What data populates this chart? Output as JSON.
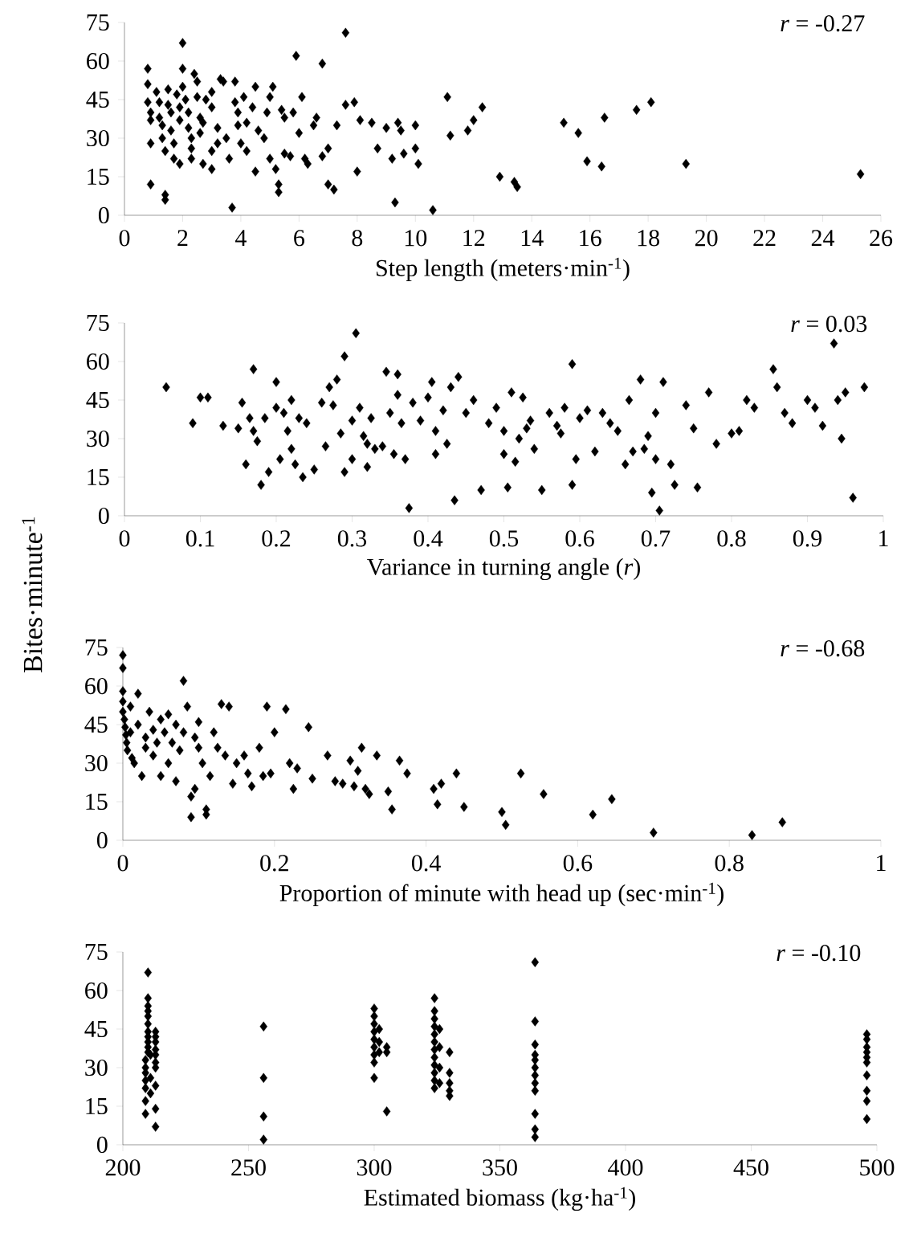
{
  "chart_data": [
    {
      "type": "scatter",
      "color": "#000000",
      "marker": "diamond",
      "xlabel": "Step length (meters·min$^{-1}$)",
      "annotations": [
        "*r* = -0.27"
      ],
      "xlim": [
        0,
        26
      ],
      "xticks": [
        0,
        2,
        4,
        6,
        8,
        10,
        12,
        14,
        16,
        18,
        20,
        22,
        24,
        26
      ],
      "ylim": [
        0,
        75
      ],
      "yticks": [
        0,
        15,
        30,
        45,
        60,
        75
      ],
      "x": [
        0.8,
        0.8,
        0.8,
        0.9,
        0.9,
        0.9,
        0.9,
        1.1,
        1.2,
        1.2,
        1.3,
        1.3,
        1.4,
        1.4,
        1.4,
        1.5,
        1.5,
        1.6,
        1.6,
        1.7,
        1.7,
        1.8,
        1.9,
        1.9,
        1.9,
        2.0,
        2.0,
        2.0,
        2.1,
        2.2,
        2.2,
        2.3,
        2.3,
        2.3,
        2.4,
        2.5,
        2.5,
        2.6,
        2.6,
        2.7,
        2.7,
        2.8,
        3.0,
        3.0,
        3.0,
        3.0,
        3.2,
        3.2,
        3.3,
        3.4,
        3.5,
        3.6,
        3.7,
        3.8,
        3.8,
        3.9,
        3.9,
        4.0,
        4.1,
        4.2,
        4.2,
        4.4,
        4.5,
        4.5,
        4.6,
        4.8,
        4.9,
        5.0,
        5.0,
        5.1,
        5.2,
        5.3,
        5.3,
        5.4,
        5.5,
        5.5,
        5.7,
        5.8,
        5.9,
        6.0,
        6.1,
        6.2,
        6.3,
        6.5,
        6.6,
        6.8,
        6.8,
        7.0,
        7.0,
        7.2,
        7.3,
        7.6,
        7.6,
        7.9,
        8.0,
        8.1,
        8.5,
        8.7,
        9.0,
        9.2,
        9.3,
        9.4,
        9.5,
        9.6,
        10.0,
        10.0,
        10.1,
        10.6,
        11.1,
        11.2,
        11.8,
        12.0,
        12.3,
        12.9,
        13.4,
        13.5,
        15.1,
        15.6,
        15.9,
        16.5,
        16.4,
        17.6,
        18.1,
        19.3,
        25.3
      ],
      "values": [
        57,
        51,
        44,
        40,
        37,
        28,
        12,
        48,
        44,
        38,
        35,
        30,
        25,
        8,
        6,
        49,
        43,
        40,
        33,
        28,
        22,
        47,
        42,
        37,
        20,
        67,
        57,
        50,
        45,
        40,
        34,
        30,
        26,
        22,
        55,
        52,
        46,
        38,
        32,
        36,
        20,
        45,
        48,
        42,
        25,
        18,
        34,
        28,
        53,
        52,
        30,
        22,
        3,
        52,
        44,
        40,
        35,
        28,
        46,
        25,
        36,
        42,
        17,
        50,
        33,
        30,
        40,
        46,
        22,
        50,
        18,
        12,
        9,
        41,
        38,
        24,
        23,
        40,
        62,
        32,
        46,
        22,
        20,
        35,
        38,
        23,
        59,
        12,
        26,
        10,
        35,
        71,
        43,
        44,
        17,
        37,
        36,
        26,
        34,
        22,
        5,
        36,
        33,
        24,
        35,
        26,
        20,
        2,
        46,
        31,
        33,
        37,
        42,
        15,
        13,
        11,
        36,
        32,
        21,
        38,
        19,
        41,
        44,
        20,
        16
      ]
    },
    {
      "type": "scatter",
      "color": "#000000",
      "marker": "diamond",
      "xlabel": "Variance in turning angle (*r*)",
      "ylabel": "Bites·minute$^{-1}$",
      "annotations": [
        "*r* = 0.03"
      ],
      "xlim": [
        0,
        1
      ],
      "xticks": [
        0,
        0.1,
        0.2,
        0.3,
        0.4,
        0.5,
        0.6,
        0.7,
        0.8,
        0.9,
        1
      ],
      "ylim": [
        0,
        75
      ],
      "yticks": [
        0,
        15,
        30,
        45,
        60,
        75
      ],
      "x": [
        0.055,
        0.09,
        0.1,
        0.11,
        0.13,
        0.15,
        0.155,
        0.16,
        0.165,
        0.17,
        0.17,
        0.175,
        0.18,
        0.185,
        0.19,
        0.2,
        0.2,
        0.205,
        0.21,
        0.215,
        0.22,
        0.22,
        0.225,
        0.23,
        0.235,
        0.24,
        0.25,
        0.26,
        0.265,
        0.27,
        0.275,
        0.28,
        0.285,
        0.29,
        0.29,
        0.3,
        0.3,
        0.305,
        0.31,
        0.315,
        0.32,
        0.32,
        0.325,
        0.33,
        0.34,
        0.345,
        0.35,
        0.355,
        0.36,
        0.36,
        0.365,
        0.37,
        0.375,
        0.38,
        0.39,
        0.4,
        0.405,
        0.41,
        0.41,
        0.42,
        0.425,
        0.43,
        0.435,
        0.44,
        0.45,
        0.46,
        0.47,
        0.48,
        0.49,
        0.5,
        0.5,
        0.505,
        0.51,
        0.515,
        0.52,
        0.525,
        0.53,
        0.535,
        0.54,
        0.55,
        0.56,
        0.57,
        0.575,
        0.58,
        0.59,
        0.59,
        0.595,
        0.6,
        0.61,
        0.62,
        0.63,
        0.64,
        0.65,
        0.66,
        0.665,
        0.67,
        0.68,
        0.685,
        0.69,
        0.695,
        0.7,
        0.7,
        0.705,
        0.71,
        0.72,
        0.725,
        0.74,
        0.75,
        0.755,
        0.77,
        0.78,
        0.8,
        0.81,
        0.82,
        0.83,
        0.855,
        0.86,
        0.87,
        0.88,
        0.9,
        0.91,
        0.92,
        0.935,
        0.94,
        0.945,
        0.95,
        0.96,
        0.975
      ],
      "values": [
        50,
        36,
        46,
        46,
        35,
        34,
        44,
        20,
        38,
        57,
        33,
        29,
        12,
        38,
        17,
        52,
        42,
        22,
        40,
        33,
        45,
        26,
        20,
        38,
        15,
        36,
        18,
        44,
        27,
        50,
        43,
        53,
        32,
        62,
        17,
        37,
        22,
        71,
        42,
        31,
        28,
        19,
        38,
        26,
        27,
        56,
        40,
        24,
        55,
        47,
        36,
        22,
        3,
        44,
        37,
        46,
        52,
        33,
        24,
        41,
        28,
        50,
        6,
        54,
        40,
        45,
        10,
        36,
        42,
        33,
        24,
        11,
        48,
        21,
        30,
        46,
        34,
        37,
        26,
        10,
        40,
        35,
        32,
        42,
        59,
        12,
        22,
        38,
        41,
        25,
        40,
        36,
        33,
        20,
        45,
        25,
        53,
        26,
        31,
        9,
        40,
        22,
        2,
        52,
        20,
        12,
        43,
        34,
        11,
        48,
        28,
        32,
        33,
        45,
        42,
        57,
        50,
        40,
        36,
        45,
        42,
        35,
        67,
        45,
        30,
        48,
        7,
        50
      ]
    },
    {
      "type": "scatter",
      "color": "#000000",
      "marker": "diamond",
      "xlabel": "Proportion of minute with head up (sec·min$^{-1}$)",
      "annotations": [
        "*r* = -0.68"
      ],
      "xlim": [
        0,
        1
      ],
      "xticks": [
        0,
        0.2,
        0.4,
        0.6,
        0.8,
        1
      ],
      "ylim": [
        0,
        75
      ],
      "yticks": [
        0,
        15,
        30,
        45,
        60,
        75
      ],
      "x": [
        0.0,
        0.0,
        0.0,
        0.0,
        0.0,
        0.002,
        0.003,
        0.004,
        0.005,
        0.006,
        0.01,
        0.01,
        0.012,
        0.015,
        0.02,
        0.02,
        0.025,
        0.03,
        0.03,
        0.035,
        0.04,
        0.04,
        0.045,
        0.05,
        0.05,
        0.055,
        0.06,
        0.06,
        0.065,
        0.07,
        0.07,
        0.075,
        0.08,
        0.08,
        0.085,
        0.09,
        0.09,
        0.095,
        0.095,
        0.1,
        0.1,
        0.105,
        0.11,
        0.11,
        0.115,
        0.12,
        0.125,
        0.13,
        0.135,
        0.14,
        0.145,
        0.15,
        0.16,
        0.165,
        0.17,
        0.18,
        0.185,
        0.19,
        0.195,
        0.2,
        0.215,
        0.22,
        0.225,
        0.23,
        0.245,
        0.25,
        0.27,
        0.28,
        0.29,
        0.3,
        0.305,
        0.31,
        0.315,
        0.32,
        0.325,
        0.335,
        0.35,
        0.355,
        0.365,
        0.375,
        0.41,
        0.415,
        0.42,
        0.44,
        0.45,
        0.5,
        0.505,
        0.525,
        0.555,
        0.62,
        0.645,
        0.7,
        0.83,
        0.87
      ],
      "values": [
        72,
        67,
        58,
        54,
        50,
        47,
        44,
        41,
        38,
        35,
        52,
        42,
        32,
        30,
        57,
        45,
        25,
        40,
        36,
        50,
        43,
        33,
        38,
        47,
        25,
        42,
        49,
        30,
        38,
        45,
        23,
        35,
        62,
        42,
        52,
        17,
        9,
        40,
        20,
        46,
        36,
        30,
        12,
        10,
        25,
        42,
        36,
        53,
        33,
        52,
        22,
        30,
        33,
        26,
        21,
        36,
        25,
        52,
        26,
        42,
        51,
        30,
        20,
        28,
        44,
        24,
        33,
        23,
        22,
        31,
        21,
        27,
        36,
        20,
        18,
        33,
        19,
        12,
        31,
        26,
        20,
        14,
        22,
        26,
        13,
        11,
        6,
        26,
        18,
        10,
        16,
        3,
        2,
        7
      ]
    },
    {
      "type": "scatter",
      "color": "#000000",
      "marker": "diamond",
      "xlabel": "Estimated biomass (kg·ha$^{-1}$)",
      "annotations": [
        "*r* = -0.10"
      ],
      "xlim": [
        200,
        500
      ],
      "xticks": [
        200,
        250,
        300,
        350,
        400,
        450,
        500
      ],
      "ylim": [
        0,
        75
      ],
      "yticks": [
        0,
        15,
        30,
        45,
        60,
        75
      ],
      "x": [
        209,
        209,
        209,
        209,
        209,
        209,
        209,
        210,
        210,
        210,
        210,
        210,
        210,
        210,
        210,
        210,
        210,
        210,
        211,
        211,
        211,
        213,
        213,
        213,
        213,
        213,
        213,
        213,
        213,
        213,
        213,
        256,
        256,
        256,
        256,
        300,
        300,
        300,
        300,
        300,
        300,
        300,
        300,
        300,
        302,
        302,
        302,
        305,
        305,
        305,
        324,
        324,
        324,
        324,
        324,
        324,
        324,
        324,
        324,
        324,
        324,
        324,
        326,
        326,
        326,
        326,
        330,
        330,
        330,
        330,
        330,
        364,
        364,
        364,
        364,
        364,
        364,
        364,
        364,
        364,
        364,
        364,
        364,
        496,
        496,
        496,
        496,
        496,
        496,
        496,
        496,
        496,
        496
      ],
      "values": [
        12,
        17,
        22,
        25,
        28,
        30,
        33,
        36,
        38,
        40,
        42,
        44,
        47,
        50,
        52,
        54,
        57,
        67,
        20,
        26,
        35,
        7,
        14,
        23,
        30,
        32,
        35,
        37,
        40,
        42,
        44,
        46,
        26,
        11,
        2,
        53,
        50,
        47,
        44,
        41,
        38,
        35,
        32,
        26,
        45,
        40,
        36,
        13,
        38,
        36,
        57,
        52,
        49,
        46,
        43,
        40,
        37,
        34,
        31,
        28,
        25,
        22,
        45,
        38,
        30,
        24,
        36,
        28,
        24,
        21,
        19,
        71,
        48,
        39,
        35,
        33,
        30,
        27,
        24,
        21,
        12,
        6,
        3,
        43,
        41,
        38,
        36,
        34,
        32,
        27,
        21,
        17,
        10
      ]
    }
  ]
}
